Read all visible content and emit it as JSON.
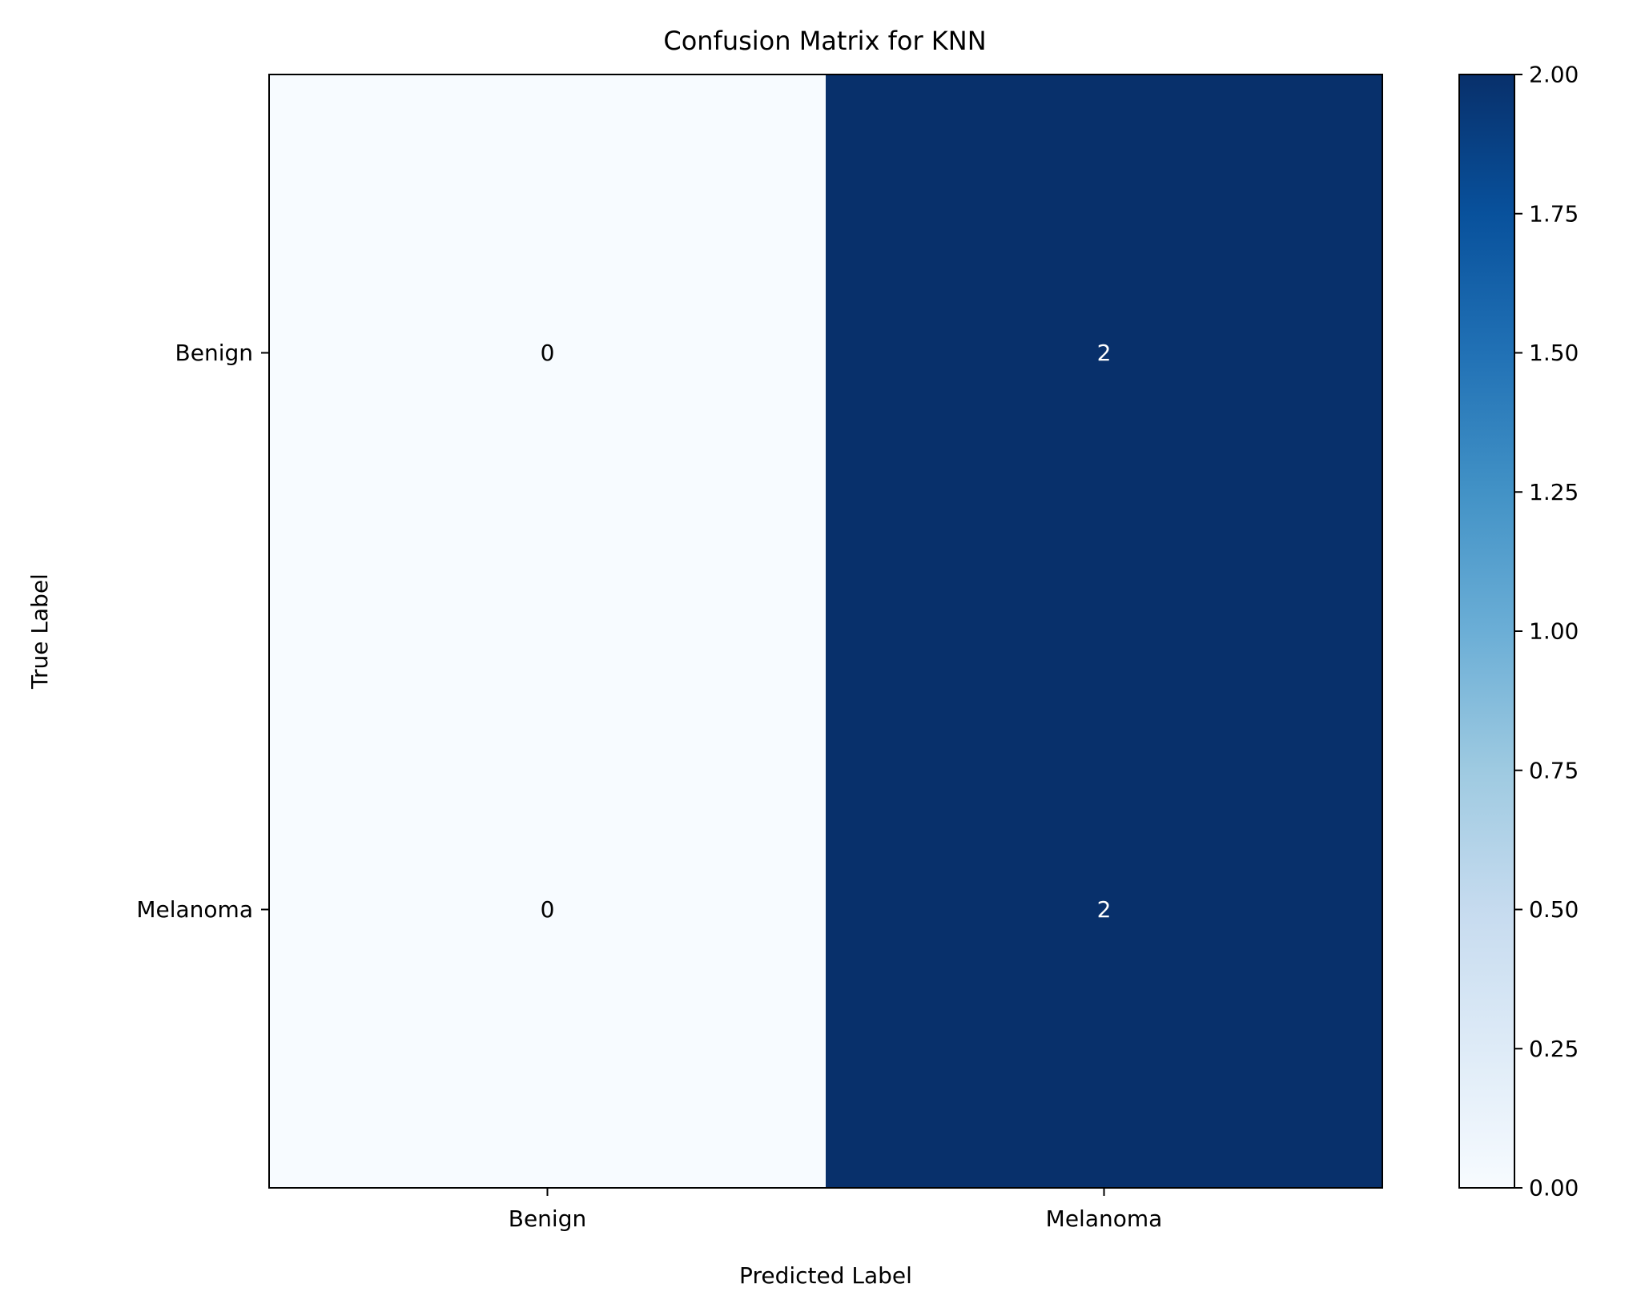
{
  "chart_data": {
    "type": "heatmap",
    "title": "Confusion Matrix for KNN",
    "xlabel": "Predicted Label",
    "ylabel": "True Label",
    "x_categories": [
      "Benign",
      "Melanoma"
    ],
    "y_categories": [
      "Benign",
      "Melanoma"
    ],
    "matrix": [
      [
        0,
        2
      ],
      [
        0,
        2
      ]
    ],
    "cell_text": [
      [
        "0",
        "2"
      ],
      [
        "0",
        "2"
      ]
    ],
    "colormap": "Blues",
    "colorbar": {
      "vmin": 0,
      "vmax": 2,
      "ticks": [
        0,
        0.25,
        0.5,
        0.75,
        1,
        1.25,
        1.5,
        1.75,
        2
      ],
      "tick_labels": [
        "0.00",
        "0.25",
        "0.50",
        "0.75",
        "1.00",
        "1.25",
        "1.50",
        "1.75",
        "2.00"
      ]
    },
    "colors": {
      "low": "#f7fbff",
      "high": "#08306b"
    },
    "grid": false
  }
}
